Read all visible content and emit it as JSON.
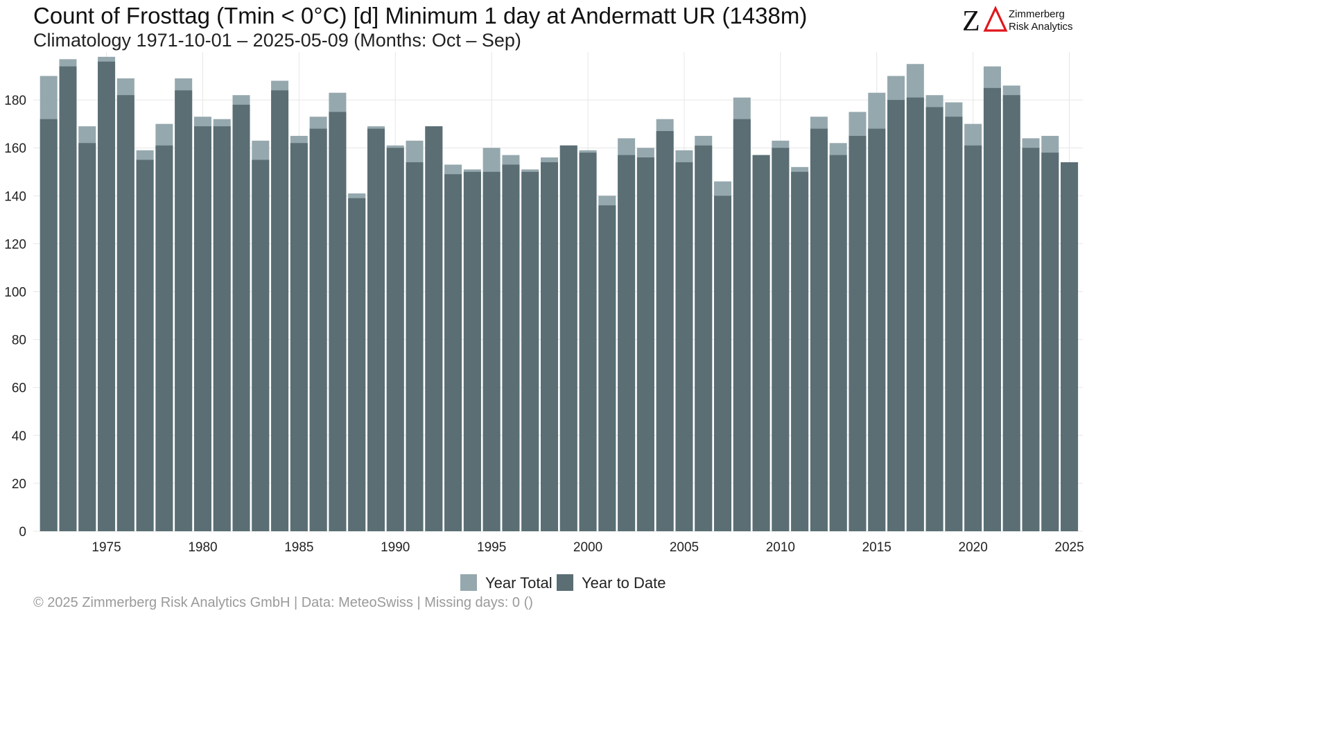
{
  "chart_data": {
    "type": "bar",
    "title": "Count of Frosttag (Tmin < 0°C) [d] Minimum 1 day at Andermatt  UR (1438m)",
    "subtitle": "Climatology 1971-10-01 – 2025-05-09 (Months: Oct – Sep)",
    "x": [
      1972,
      1973,
      1974,
      1975,
      1976,
      1977,
      1978,
      1979,
      1980,
      1981,
      1982,
      1983,
      1984,
      1985,
      1986,
      1987,
      1988,
      1989,
      1990,
      1991,
      1992,
      1993,
      1994,
      1995,
      1996,
      1997,
      1998,
      1999,
      2000,
      2001,
      2002,
      2003,
      2004,
      2005,
      2006,
      2007,
      2008,
      2009,
      2010,
      2011,
      2012,
      2013,
      2014,
      2015,
      2016,
      2017,
      2018,
      2019,
      2020,
      2021,
      2022,
      2023,
      2024,
      2025
    ],
    "x_ticks": [
      1975,
      1980,
      1985,
      1990,
      1995,
      2000,
      2005,
      2010,
      2015,
      2020,
      2025
    ],
    "ylim": [
      0,
      200
    ],
    "y_ticks": [
      0,
      20,
      40,
      60,
      80,
      100,
      120,
      140,
      160,
      180
    ],
    "grid": true,
    "legend_position": "bottom",
    "series": [
      {
        "name": "Year Total",
        "color": "#95a8ae",
        "values": [
          190,
          197,
          169,
          198,
          189,
          159,
          170,
          189,
          173,
          172,
          182,
          163,
          188,
          165,
          173,
          183,
          141,
          169,
          161,
          163,
          169,
          153,
          151,
          160,
          157,
          151,
          156,
          161,
          159,
          140,
          164,
          160,
          172,
          159,
          165,
          146,
          181,
          157,
          163,
          152,
          173,
          162,
          175,
          183,
          190,
          195,
          182,
          179,
          170,
          194,
          186,
          164,
          165,
          154
        ]
      },
      {
        "name": "Year to Date",
        "color": "#5a6e74",
        "values": [
          172,
          194,
          162,
          196,
          182,
          155,
          161,
          184,
          169,
          169,
          178,
          155,
          184,
          162,
          168,
          175,
          139,
          168,
          160,
          154,
          169,
          149,
          150,
          150,
          153,
          150,
          154,
          161,
          158,
          136,
          157,
          156,
          167,
          154,
          161,
          140,
          172,
          157,
          160,
          150,
          168,
          157,
          165,
          168,
          180,
          181,
          177,
          173,
          161,
          185,
          182,
          160,
          158,
          154
        ]
      }
    ]
  },
  "logo": {
    "line1": "Zimmerberg",
    "line2": "Risk Analytics",
    "brand_color": "#e0161b"
  },
  "caption": "©  2025 Zimmerberg Risk Analytics GmbH | Data: MeteoSwiss | Missing days: 0 ()"
}
